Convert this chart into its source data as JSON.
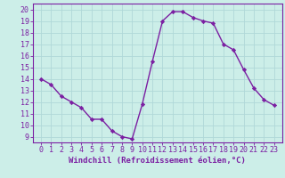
{
  "x": [
    0,
    1,
    2,
    3,
    4,
    5,
    6,
    7,
    8,
    9,
    10,
    11,
    12,
    13,
    14,
    15,
    16,
    17,
    18,
    19,
    20,
    21,
    22,
    23
  ],
  "y": [
    14.0,
    13.5,
    12.5,
    12.0,
    11.5,
    10.5,
    10.5,
    9.5,
    9.0,
    8.8,
    11.8,
    15.5,
    19.0,
    19.8,
    19.8,
    19.3,
    19.0,
    18.8,
    17.0,
    16.5,
    14.8,
    13.2,
    12.2,
    11.7
  ],
  "line_color": "#7b1fa2",
  "marker": "D",
  "marker_size": 2.2,
  "bg_color": "#cceee8",
  "grid_color": "#b0d8d8",
  "xlabel": "Windchill (Refroidissement éolien,°C)",
  "ylim": [
    8.5,
    20.5
  ],
  "yticks": [
    9,
    10,
    11,
    12,
    13,
    14,
    15,
    16,
    17,
    18,
    19,
    20
  ],
  "xticks": [
    0,
    1,
    2,
    3,
    4,
    5,
    6,
    7,
    8,
    9,
    10,
    11,
    12,
    13,
    14,
    15,
    16,
    17,
    18,
    19,
    20,
    21,
    22,
    23
  ],
  "xlabel_fontsize": 6.5,
  "tick_fontsize": 6.0,
  "line_width": 1.0
}
